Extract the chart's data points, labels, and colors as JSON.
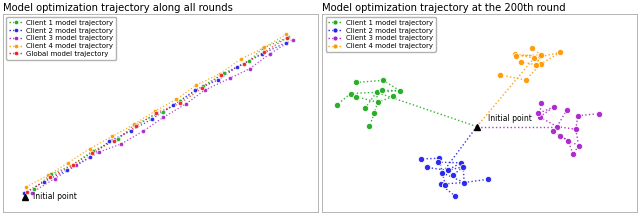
{
  "title_left": "Model optimization trajectory along all rounds",
  "title_right": "Model optimization trajectory at the 200th round",
  "colors": {
    "client1": "#22aa22",
    "client2": "#2222ee",
    "client3": "#aa22cc",
    "client4": "#ff9900",
    "global": "#ee2222"
  },
  "legend_labels": [
    "Client 1 model trajectory",
    "Client 2 model trajectory",
    "Client 3 model trajectory",
    "Client 4 model trajectory",
    "Global model trajectory"
  ],
  "legend_labels_right": [
    "Client 1 model trajectory",
    "Client 2 model trajectory",
    "Client 3 model trajectory",
    "Client 4 model trajectory"
  ]
}
